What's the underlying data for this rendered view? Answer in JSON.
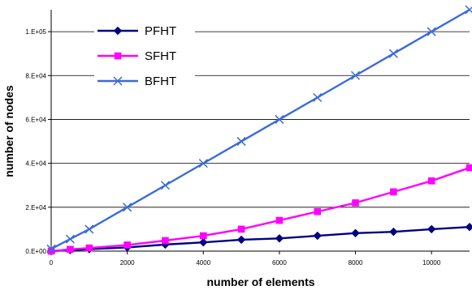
{
  "chart_data": {
    "type": "line",
    "xlabel": "number of elements",
    "ylabel": "number of nodes",
    "xlim": [
      0,
      11000
    ],
    "ylim": [
      0,
      110000
    ],
    "grid": "horizontal",
    "legend_position": "top-left",
    "x_ticks": [
      0,
      2000,
      4000,
      6000,
      8000,
      10000
    ],
    "x_tick_labels": [
      "0",
      "2000",
      "4000",
      "6000",
      "8000",
      "10000"
    ],
    "y_ticks": [
      0,
      20000,
      40000,
      60000,
      80000,
      100000
    ],
    "y_tick_labels": [
      "0.E+00",
      "2.E+04",
      "4.E+04",
      "6.E+04",
      "8.E+04",
      "1.E+05"
    ],
    "series": [
      {
        "name": "PFHT",
        "color": "#000080",
        "marker": "diamond",
        "x": [
          0,
          500,
          1000,
          2000,
          3000,
          4000,
          5000,
          6000,
          7000,
          8000,
          9000,
          10000,
          11000
        ],
        "y": [
          0,
          500,
          900,
          1700,
          3000,
          4000,
          5200,
          5800,
          7000,
          8200,
          8800,
          10000,
          11000
        ]
      },
      {
        "name": "SFHT",
        "color": "#ff00ff",
        "marker": "square",
        "x": [
          0,
          500,
          1000,
          2000,
          3000,
          4000,
          5000,
          6000,
          7000,
          8000,
          9000,
          10000,
          11000
        ],
        "y": [
          0,
          800,
          1400,
          2800,
          4800,
          7000,
          10000,
          14000,
          18000,
          22000,
          27000,
          32000,
          38000
        ]
      },
      {
        "name": "BFHT",
        "color": "#3a6bdc",
        "marker": "x",
        "x": [
          0,
          500,
          1000,
          2000,
          3000,
          4000,
          5000,
          6000,
          7000,
          8000,
          9000,
          10000,
          11000
        ],
        "y": [
          1000,
          5500,
          10000,
          20000,
          30000,
          40000,
          50000,
          60000,
          70000,
          80000,
          90000,
          100000,
          110000
        ]
      }
    ]
  }
}
